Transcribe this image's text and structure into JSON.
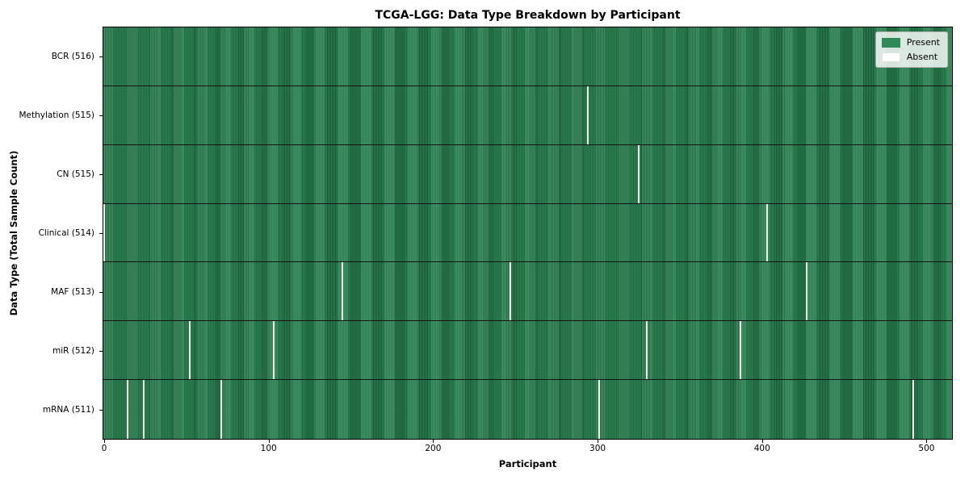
{
  "chart_data": {
    "type": "heatmap",
    "title": "TCGA-LGG: Data Type Breakdown by Participant",
    "xlabel": "Participant",
    "ylabel": "Data Type (Total Sample Count)",
    "x_ticks": [
      0,
      100,
      200,
      300,
      400,
      500
    ],
    "x_range": [
      0,
      516
    ],
    "n_participants": 516,
    "grid": false,
    "legend_position": "upper right",
    "legend": [
      {
        "label": "Present",
        "color": "#2e8b57"
      },
      {
        "label": "Absent",
        "color": "#ffffff"
      }
    ],
    "rows": [
      {
        "label": "BCR (516)",
        "data_type": "BCR",
        "present_count": 516,
        "absent_participants": []
      },
      {
        "label": "Methylation (515)",
        "data_type": "Methylation",
        "present_count": 515,
        "absent_participants": [
          294
        ]
      },
      {
        "label": "CN (515)",
        "data_type": "CN",
        "present_count": 515,
        "absent_participants": [
          325
        ]
      },
      {
        "label": "Clinical (514)",
        "data_type": "Clinical",
        "present_count": 514,
        "absent_participants": [
          0,
          403
        ]
      },
      {
        "label": "MAF (513)",
        "data_type": "MAF",
        "present_count": 513,
        "absent_participants": [
          145,
          247,
          427
        ]
      },
      {
        "label": "miR (512)",
        "data_type": "miR",
        "present_count": 512,
        "absent_participants": [
          52,
          103,
          330,
          387
        ]
      },
      {
        "label": "mRNA (511)",
        "data_type": "mRNA",
        "present_count": 511,
        "absent_participants": [
          14,
          24,
          71,
          301,
          492
        ]
      }
    ],
    "colors": {
      "present": "#2e8b57",
      "present_edge": "#1d5c39",
      "absent": "#f4f4ef",
      "row_separator": "#141414"
    }
  }
}
